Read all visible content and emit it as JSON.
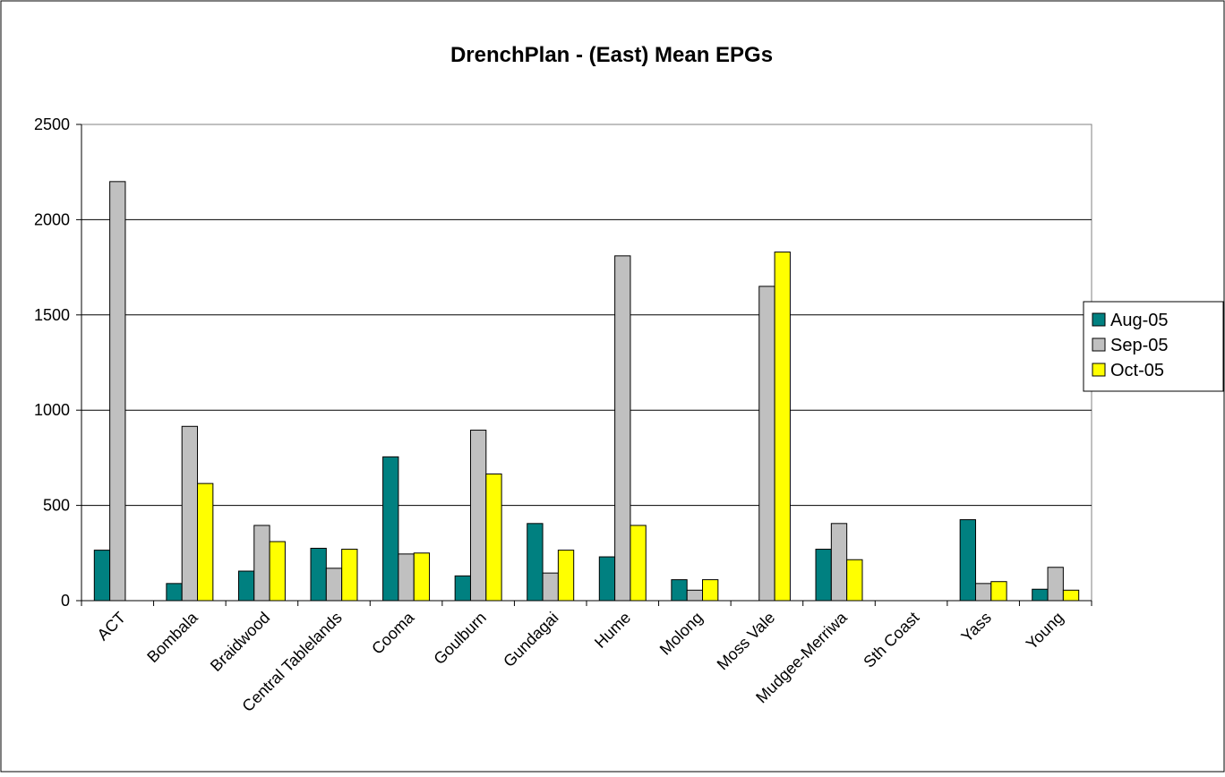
{
  "chart_data": {
    "type": "bar",
    "title": "DrenchPlan - (East)  Mean EPGs",
    "xlabel": "",
    "ylabel": "",
    "ylim": [
      0,
      2500
    ],
    "yticks": [
      "0",
      "500",
      "1000",
      "1500",
      "2000",
      "2500"
    ],
    "ytick_values": [
      0,
      500,
      1000,
      1500,
      2000,
      2500
    ],
    "grid": true,
    "legend_position": "right",
    "categories": [
      "ACT",
      "Bombala",
      "Braidwood",
      "Central Tablelands",
      "Cooma",
      "Goulburn",
      "Gundagai",
      "Hume",
      "Molong",
      "Moss Vale",
      "Mudgee-Merriwa",
      "Sth Coast",
      "Yass",
      "Young"
    ],
    "series": [
      {
        "name": "Aug-05",
        "color": "#008080",
        "values": [
          265,
          90,
          155,
          275,
          755,
          130,
          405,
          230,
          110,
          0,
          270,
          0,
          425,
          60
        ]
      },
      {
        "name": "Sep-05",
        "color": "#c0c0c0",
        "values": [
          2200,
          915,
          395,
          170,
          245,
          895,
          145,
          1810,
          55,
          1650,
          405,
          0,
          90,
          175
        ]
      },
      {
        "name": "Oct-05",
        "color": "#ffff00",
        "values": [
          0,
          615,
          310,
          270,
          250,
          665,
          265,
          395,
          110,
          1830,
          215,
          0,
          100,
          55
        ]
      }
    ]
  }
}
